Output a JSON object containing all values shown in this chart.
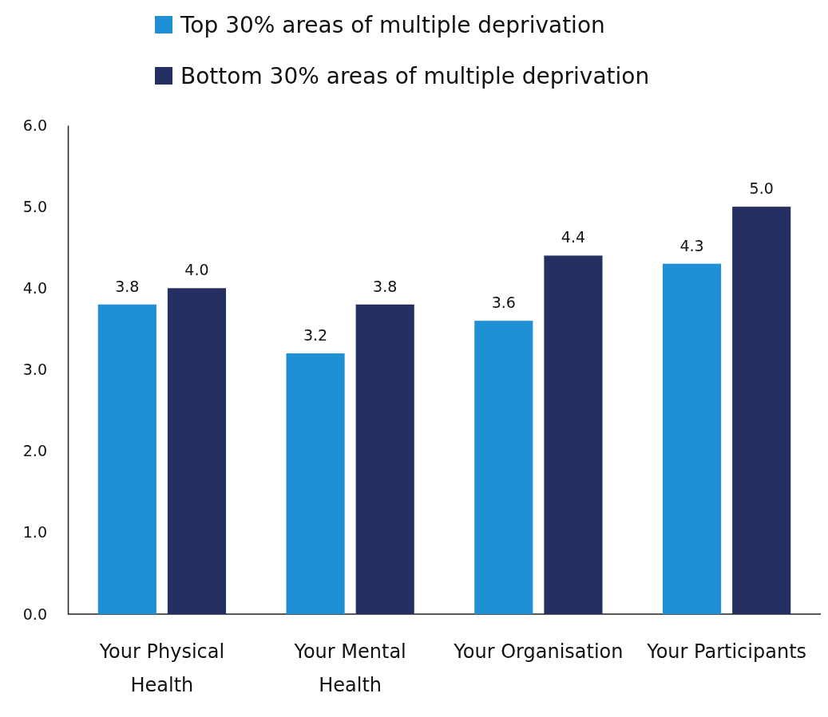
{
  "chart_data": {
    "type": "bar",
    "categories": [
      "Your Physical Health",
      "Your Mental Health",
      "Your Organisation",
      "Your Participants"
    ],
    "series": [
      {
        "name": "Top 30% areas of multiple deprivation",
        "color": "#1e90d3",
        "values": [
          3.8,
          3.2,
          3.6,
          4.3
        ],
        "value_labels": [
          "3.8",
          "3.2",
          "3.6",
          "4.3"
        ]
      },
      {
        "name": "Bottom 30% areas of multiple deprivation",
        "color": "#262f62",
        "values": [
          4.0,
          3.8,
          4.4,
          5.0
        ],
        "value_labels": [
          "4.0",
          "3.8",
          "4.4",
          "5.0"
        ]
      }
    ],
    "ylim": [
      0,
      6
    ],
    "yticks": [
      {
        "value": 0,
        "label": "0.0"
      },
      {
        "value": 1,
        "label": "1.0"
      },
      {
        "value": 2,
        "label": "2.0"
      },
      {
        "value": 3,
        "label": "3.0"
      },
      {
        "value": 4,
        "label": "4.0"
      },
      {
        "value": 5,
        "label": "5.0"
      },
      {
        "value": 6,
        "label": "6.0"
      }
    ],
    "legend": "top",
    "grid": false
  }
}
